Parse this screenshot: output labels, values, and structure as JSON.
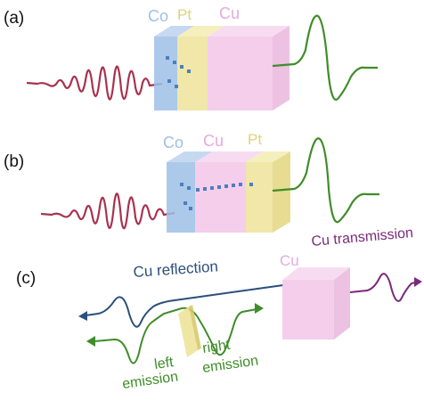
{
  "panels": {
    "a": {
      "label": "(a)",
      "layers": [
        "Co",
        "Pt",
        "Cu"
      ]
    },
    "b": {
      "label": "(b)",
      "layers": [
        "Co",
        "Cu",
        "Pt"
      ]
    },
    "c": {
      "label": "(c)",
      "cu_label": "Cu",
      "cu_transmission": "Cu transmission",
      "cu_reflection": "Cu reflection",
      "left_emission": [
        "left",
        "emission"
      ],
      "right_emission": [
        "right",
        "emission"
      ]
    }
  },
  "colors": {
    "co": "#9ec0e6",
    "pt": "#ede39a",
    "cu": "#f2c6e8",
    "pump_wave": "#a8324e",
    "thz_wave": "#3f8c2a",
    "reflection": "#2a4f7c",
    "transmission": "#7a2a7a",
    "spin": "#4a7fc1"
  }
}
